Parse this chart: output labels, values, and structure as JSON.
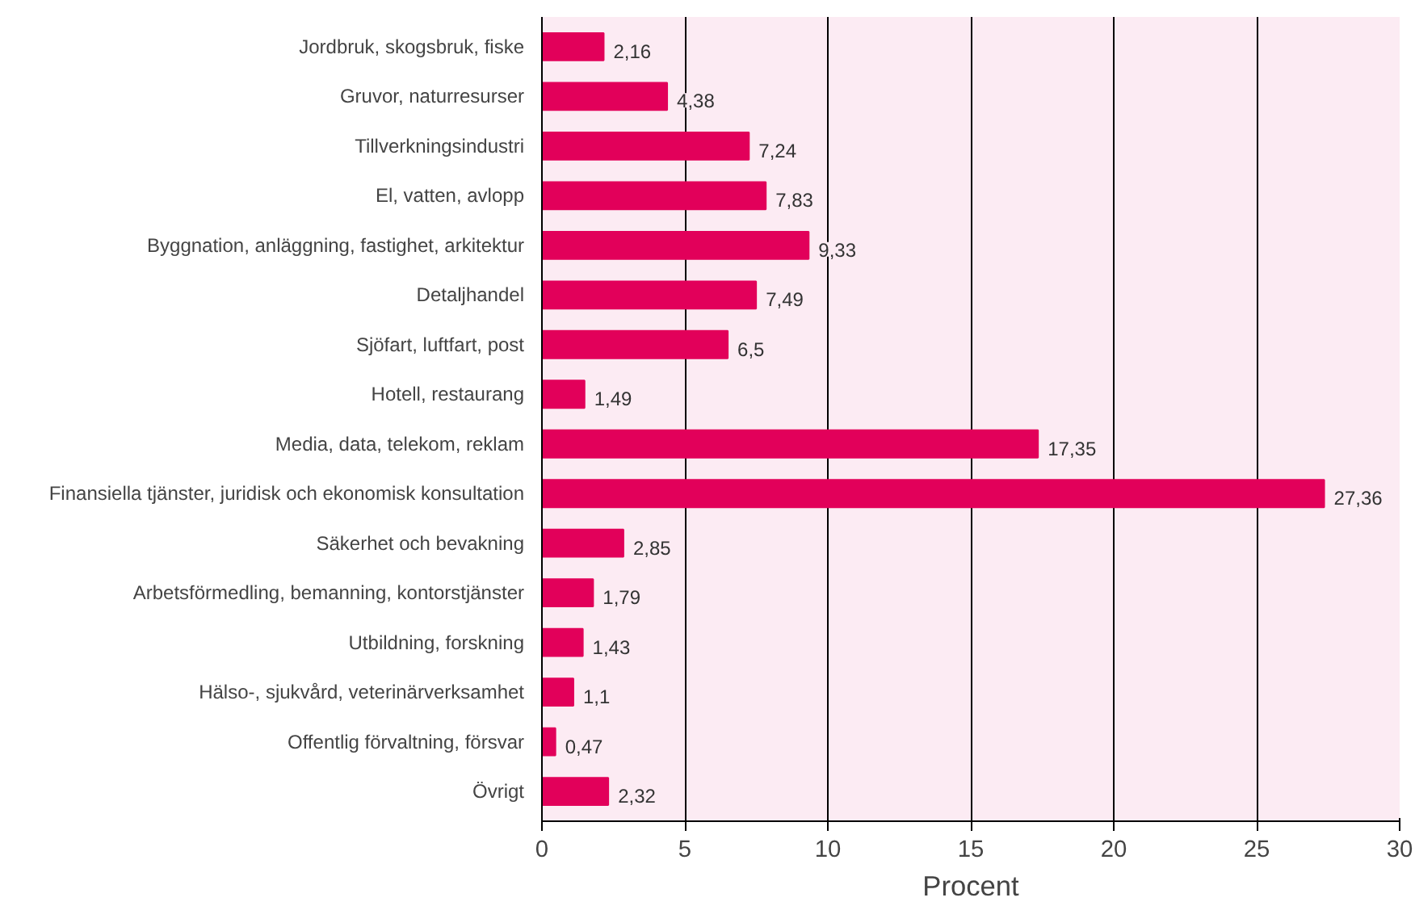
{
  "chart_data": {
    "type": "bar",
    "orientation": "horizontal",
    "xlabel": "Procent",
    "categories": [
      "Jordbruk, skogsbruk, fiske",
      "Gruvor, naturresurser",
      "Tillverkningsindustri",
      "El, vatten, avlopp",
      "Byggnation, anläggning, fastighet, arkitektur",
      "Detaljhandel",
      "Sjöfart, luftfart, post",
      "Hotell, restaurang",
      "Media, data, telekom, reklam",
      "Finansiella tjänster, juridisk och ekonomisk konsultation",
      "Säkerhet och bevakning",
      "Arbetsförmedling, bemanning, kontorstjänster",
      "Utbildning, forskning",
      "Hälso-, sjukvård, veterinärverksamhet",
      "Offentlig förvaltning, försvar",
      "Övrigt"
    ],
    "values": [
      2.16,
      4.38,
      7.24,
      7.83,
      9.33,
      7.49,
      6.5,
      1.49,
      17.35,
      27.36,
      2.85,
      1.79,
      1.43,
      1.1,
      0.47,
      2.32
    ],
    "value_labels": [
      "2,16",
      "4,38",
      "7,24",
      "7,83",
      "9,33",
      "7,49",
      "6,5",
      "1,49",
      "17,35",
      "27,36",
      "2,85",
      "1,79",
      "1,43",
      "1,1",
      "0,47",
      "2,32"
    ],
    "color": "#e2005a",
    "xlim": [
      0,
      30
    ],
    "xticks": [
      0,
      5,
      10,
      15,
      20,
      25,
      30
    ],
    "grid": "x"
  }
}
